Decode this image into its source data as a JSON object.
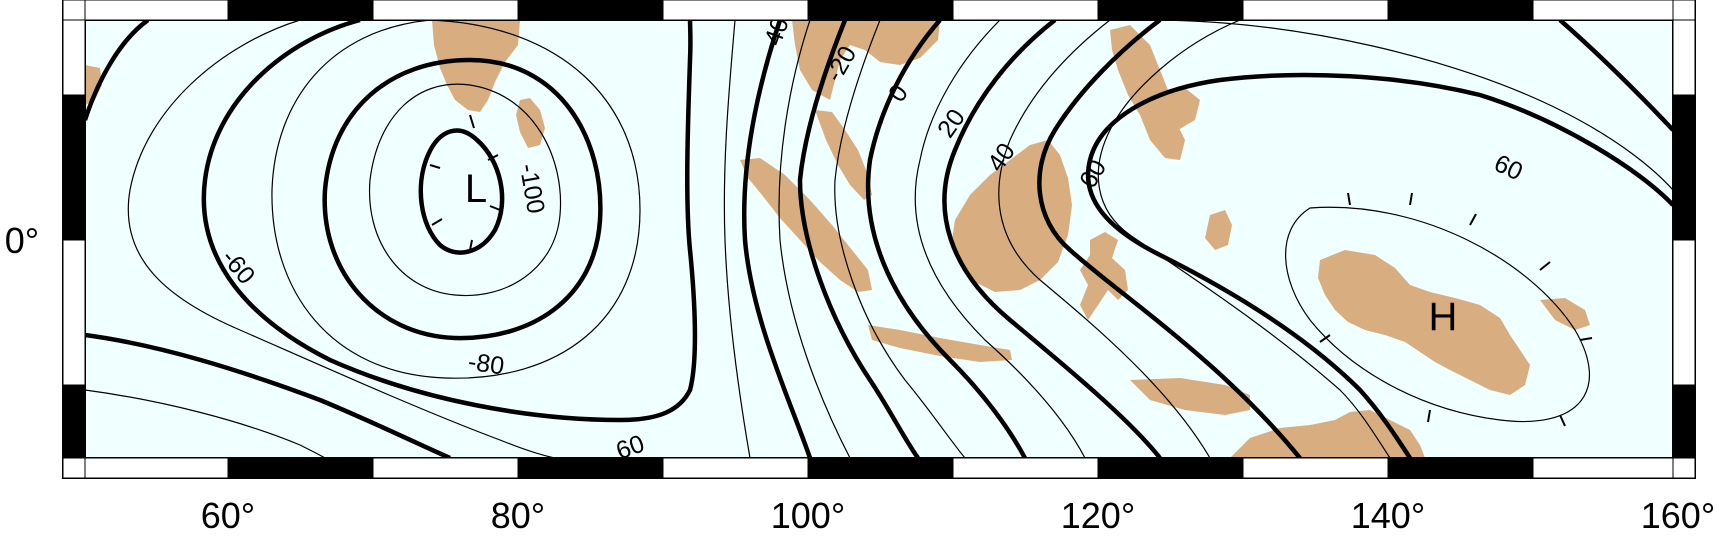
{
  "map": {
    "x_axis": {
      "ticks": [
        "60°",
        "80°",
        "100°",
        "120°",
        "140°",
        "160°"
      ]
    },
    "y_axis": {
      "ticks": [
        "0°"
      ]
    },
    "contour_labels": [
      "-60",
      "-80",
      "-100",
      "60",
      "-40",
      "-20",
      "0",
      "20",
      "40",
      "60",
      "60"
    ],
    "extrema": {
      "low": "L",
      "high": "H"
    },
    "colors": {
      "ocean": "#f0ffff",
      "land": "#d8ad7f",
      "contour": "#000000",
      "frame_fill": "#000000",
      "frame_blank": "#ffffff"
    }
  }
}
